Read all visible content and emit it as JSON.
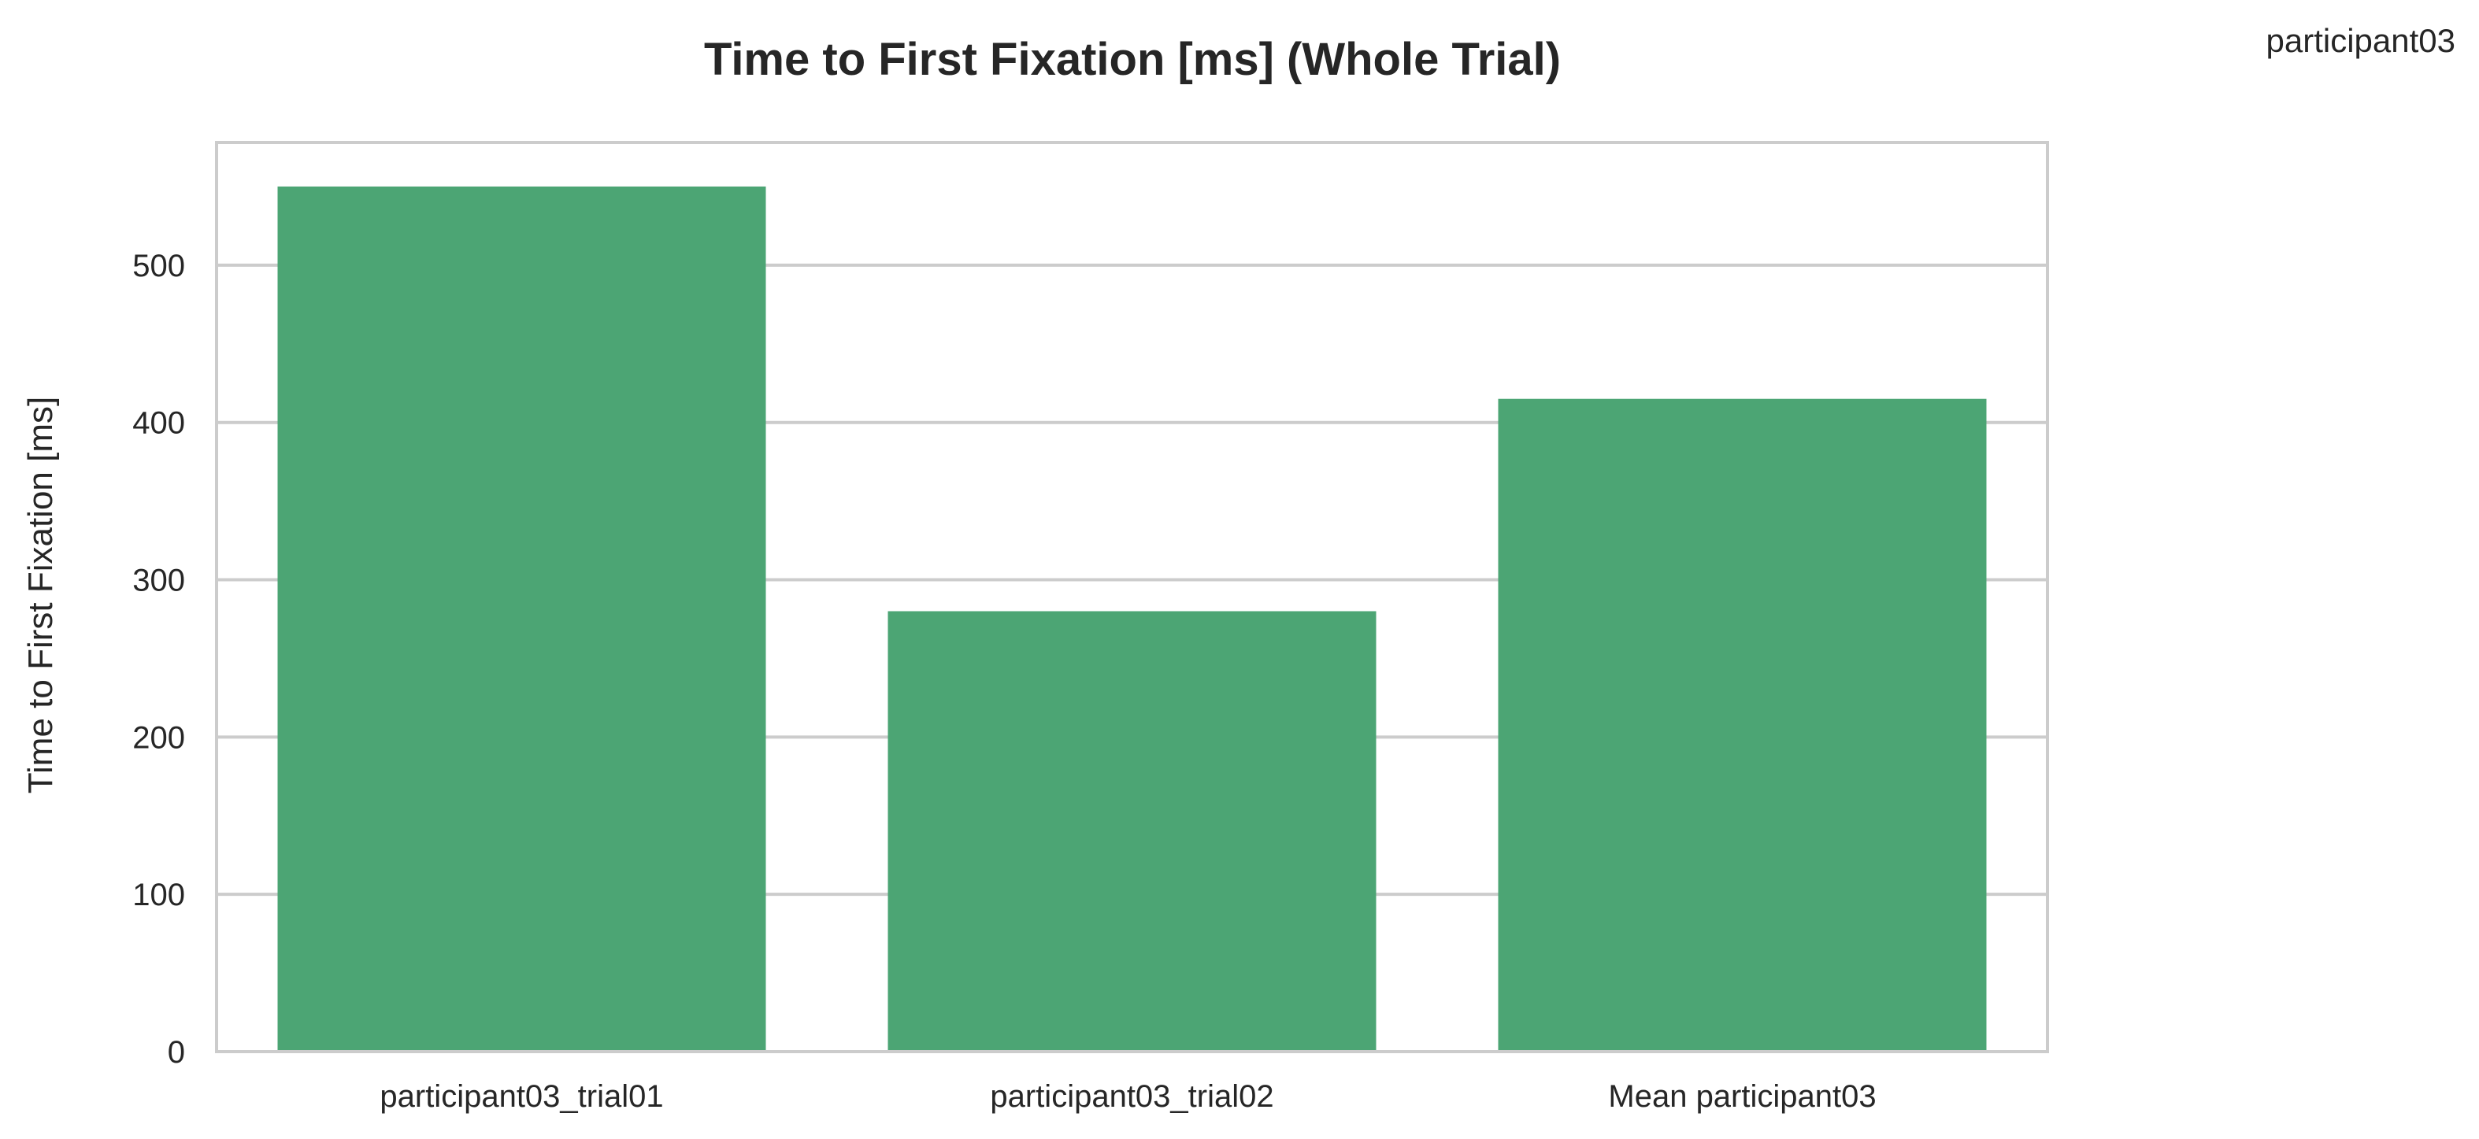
{
  "chart_data": {
    "type": "bar",
    "title": "Time to First Fixation [ms] (Whole Trial)",
    "ylabel": "Time to First Fixation [ms]",
    "xlabel": "",
    "categories": [
      "participant03_trial01",
      "participant03_trial02",
      "Mean participant03"
    ],
    "series": [
      {
        "name": "participant03",
        "values": [
          550,
          280,
          415
        ],
        "color": "#4ca574"
      }
    ],
    "ylim": [
      0,
      578
    ],
    "yticks": [
      0,
      100,
      200,
      300,
      400,
      500
    ],
    "ytick_labels": [
      "0",
      "100",
      "200",
      "300",
      "400",
      "500"
    ],
    "grid": true,
    "legend": "top-right",
    "colors": {
      "bar": "#4ca574",
      "grid": "#cccccc",
      "frame": "#cccccc",
      "text": "#262626"
    }
  }
}
